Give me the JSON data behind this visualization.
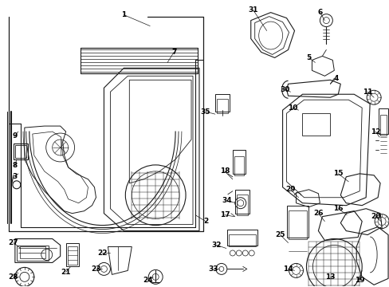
{
  "bg_color": "#ffffff",
  "lc": "#1a1a1a",
  "lw": 0.7,
  "fig_width": 4.89,
  "fig_height": 3.6,
  "dpi": 100
}
